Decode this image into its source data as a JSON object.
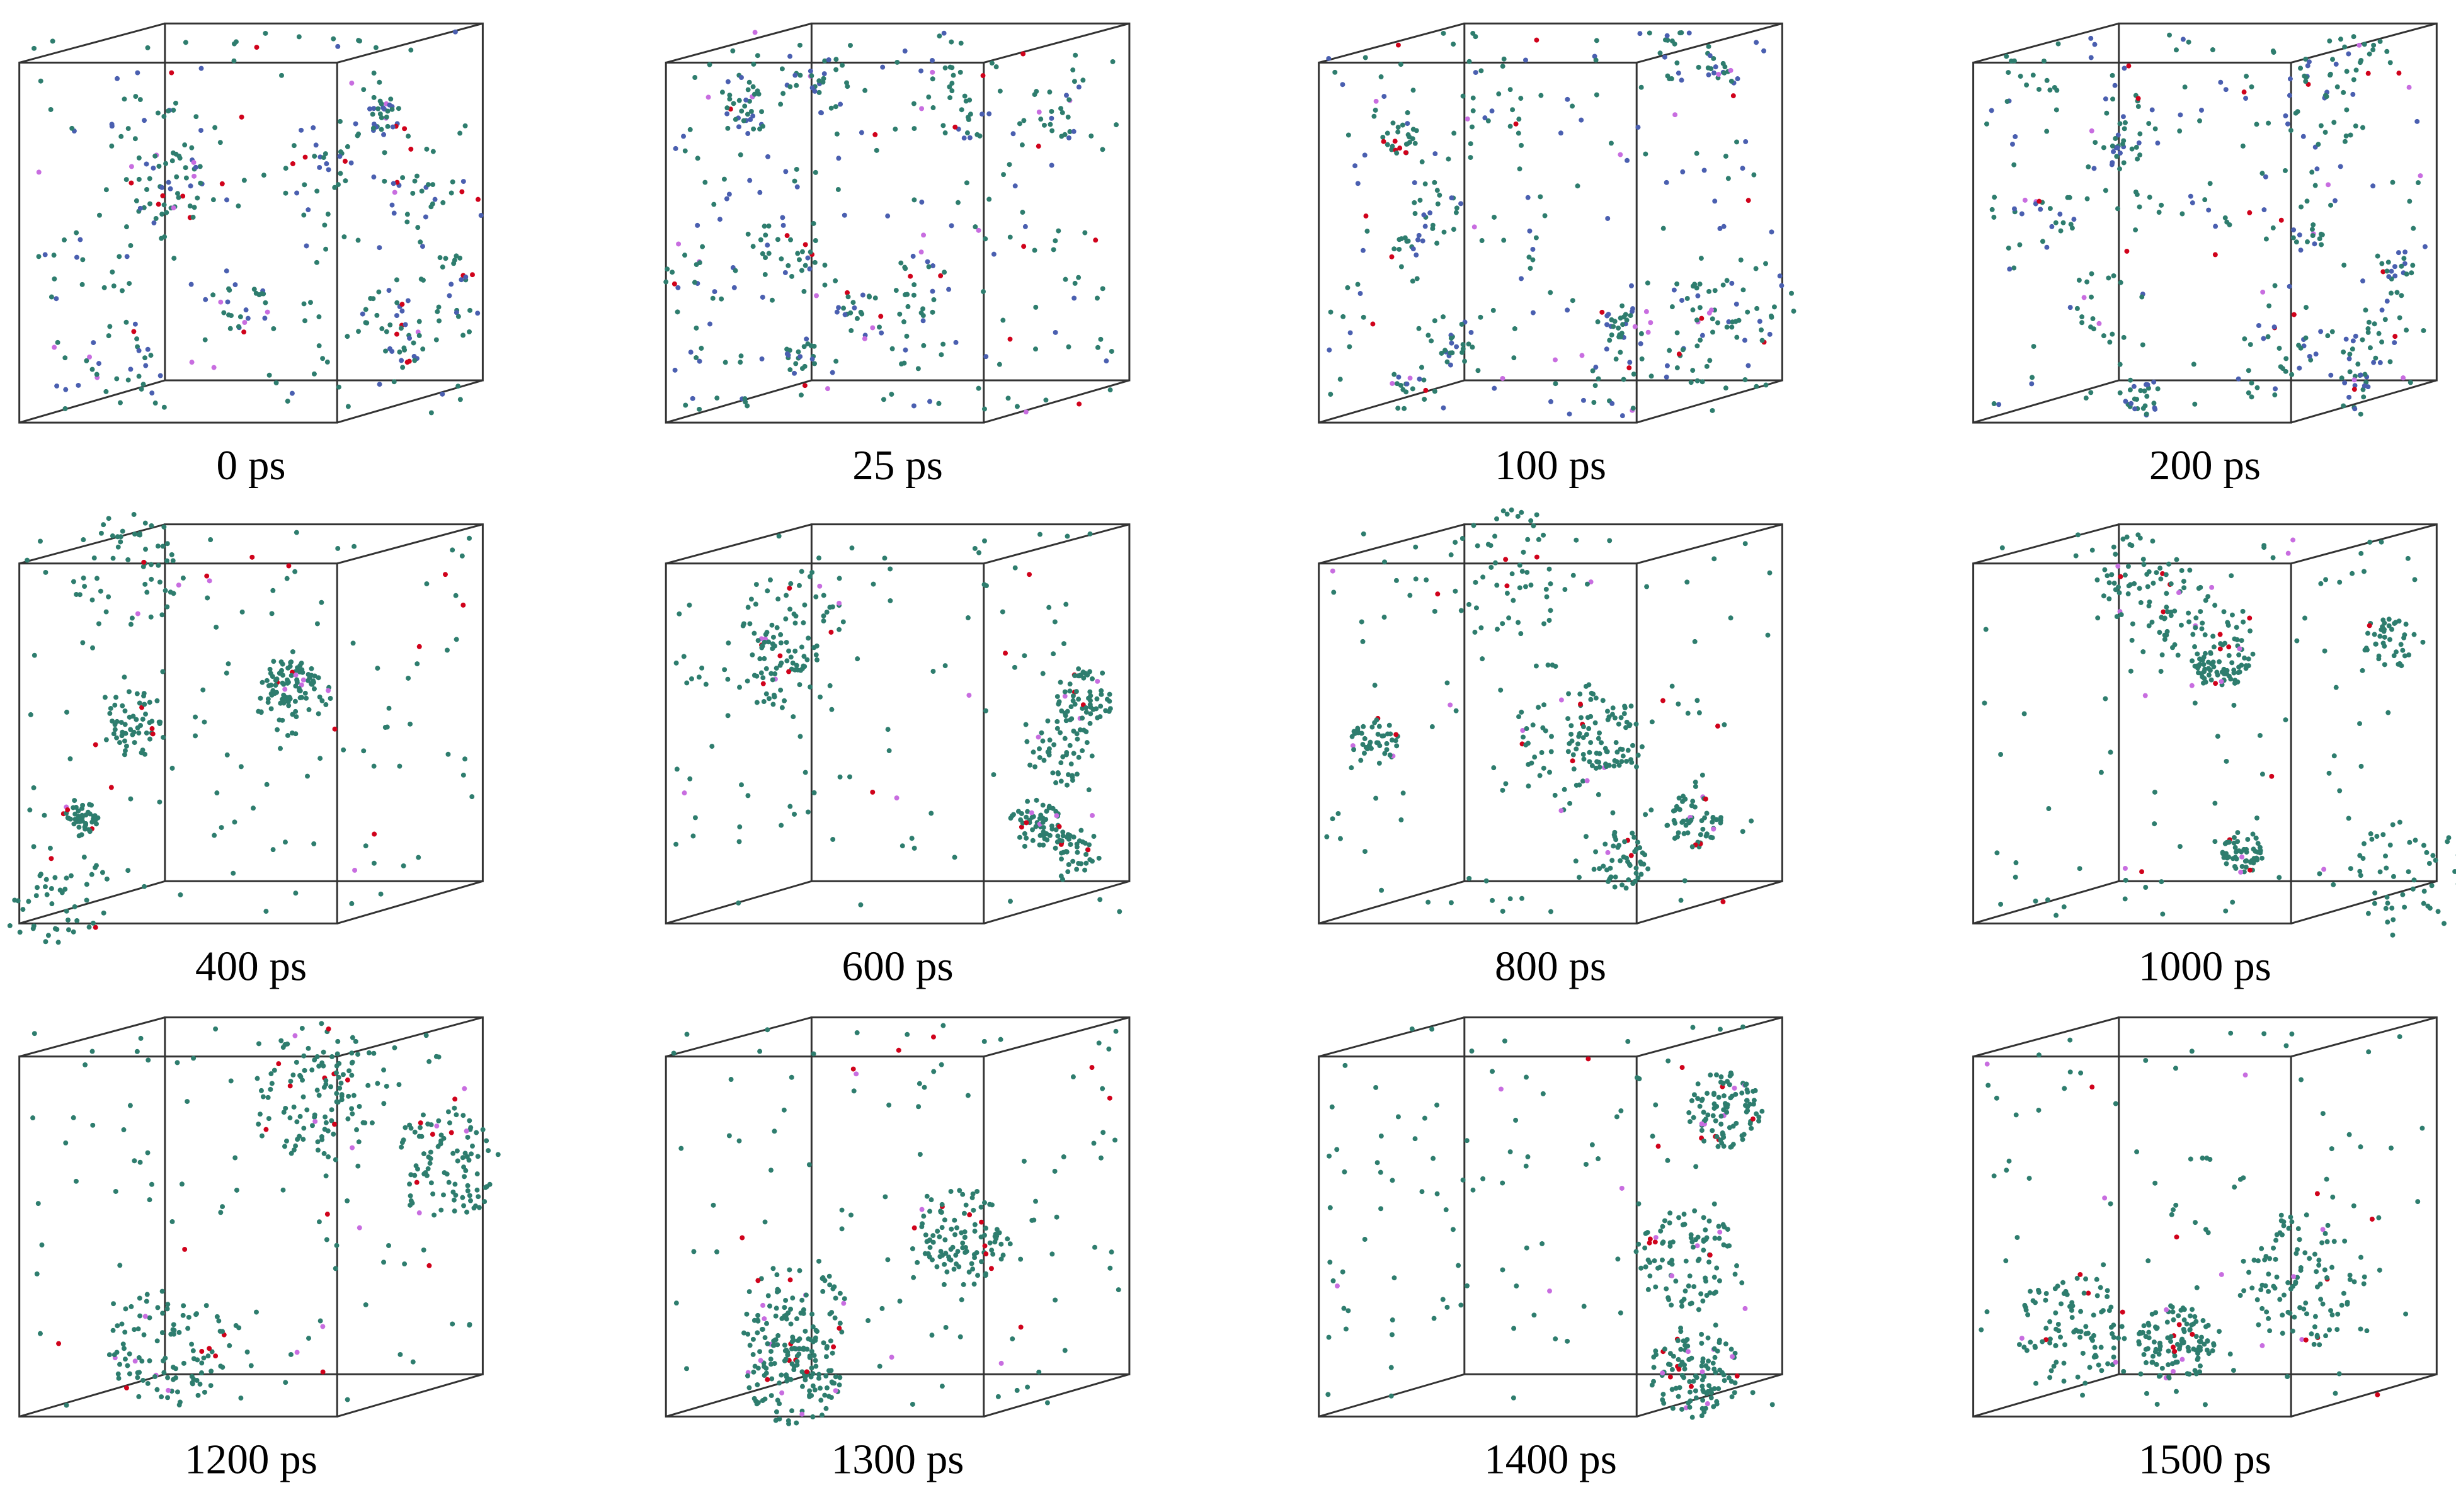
{
  "panels": [
    {
      "label": "0 ps"
    },
    {
      "label": "25 ps"
    },
    {
      "label": "100 ps"
    },
    {
      "label": "200 ps"
    },
    {
      "label": "400 ps"
    },
    {
      "label": "600 ps"
    },
    {
      "label": "800 ps"
    },
    {
      "label": "1000 ps"
    },
    {
      "label": "1200 ps"
    },
    {
      "label": "1300 ps"
    },
    {
      "label": "1400 ps"
    },
    {
      "label": "1500 ps"
    }
  ]
}
